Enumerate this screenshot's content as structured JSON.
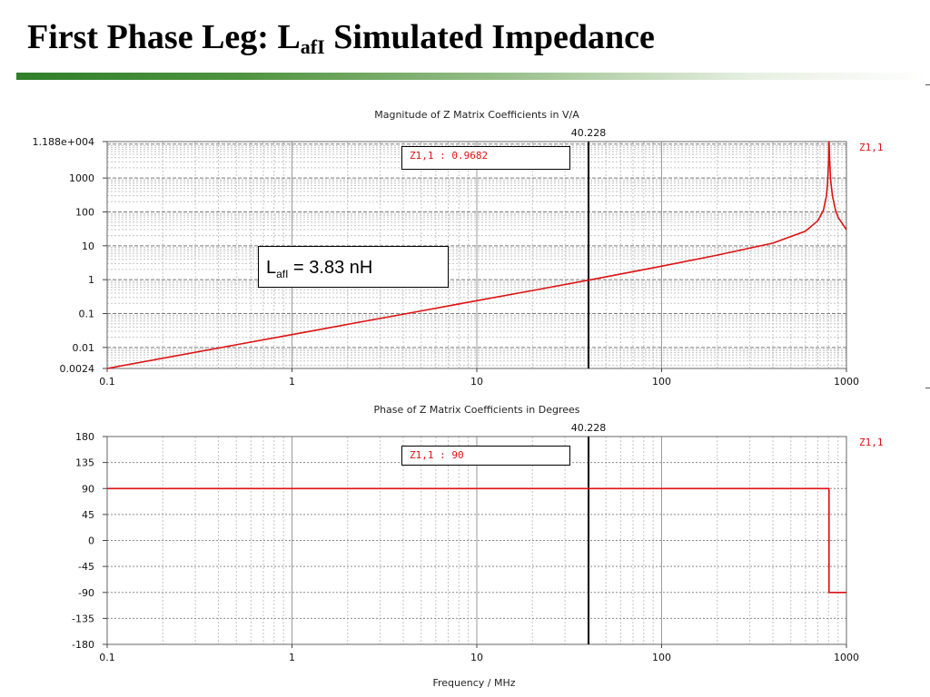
{
  "slide": {
    "title_before": "First Phase Leg: L",
    "title_subscript": "afI",
    "title_after": " Simulated Impedance"
  },
  "annotation": {
    "prefix": "L",
    "subscript": "afI",
    "suffix": " = 3.83 nH"
  },
  "colors": {
    "trace": "#dd1111",
    "rule_green": "#2f7f2a",
    "marker": "#000000"
  },
  "chart_data": [
    {
      "type": "line",
      "title": "Magnitude of Z Matrix Coefficients in V/A",
      "xscale": "log",
      "yscale": "log",
      "xlim": [
        0.1,
        1000
      ],
      "ylim": [
        0.0024,
        11880
      ],
      "x_ticks": [
        0.1,
        1,
        10,
        100,
        1000
      ],
      "x_tick_labels": [
        "0.1",
        "1",
        "10",
        "100",
        "1000"
      ],
      "y_ticks": [
        0.0024,
        0.01,
        0.1,
        1,
        10,
        100,
        1000,
        11880
      ],
      "y_tick_labels": [
        "0.0024",
        "0.01",
        "0.1",
        "1",
        "10",
        "100",
        "1000",
        "1.188e+004"
      ],
      "grid": true,
      "marker": {
        "x": 40.228,
        "label": "40.228",
        "readout": "Z1,1 : 0.9682"
      },
      "series": [
        {
          "name": "Z1,1",
          "color": "#dd1111",
          "x": [
            0.1,
            0.5,
            1,
            2,
            5,
            10,
            20,
            40.228,
            100,
            200,
            400,
            600,
            700,
            750,
            780,
            790,
            800,
            805,
            810,
            820,
            840,
            870,
            900,
            950,
            1000
          ],
          "y": [
            0.0024,
            0.012,
            0.024,
            0.048,
            0.12,
            0.24,
            0.48,
            0.9682,
            2.5,
            5.3,
            12,
            27,
            55,
            110,
            300,
            700,
            3000,
            11880,
            4000,
            900,
            300,
            120,
            70,
            45,
            30
          ]
        }
      ]
    },
    {
      "type": "line",
      "title": "Phase of Z Matrix Coefficients in Degrees",
      "xlabel": "Frequency / MHz",
      "xscale": "log",
      "xlim": [
        0.1,
        1000
      ],
      "ylim": [
        -180,
        180
      ],
      "x_ticks": [
        0.1,
        1,
        10,
        100,
        1000
      ],
      "x_tick_labels": [
        "0.1",
        "1",
        "10",
        "100",
        "1000"
      ],
      "y_ticks": [
        180,
        135,
        90,
        45,
        0,
        -45,
        -90,
        -135,
        -180
      ],
      "y_tick_labels": [
        "180",
        "135",
        "90",
        "45",
        "0",
        "-45",
        "-90",
        "-135",
        "-180"
      ],
      "grid": true,
      "marker": {
        "x": 40.228,
        "label": "40.228",
        "readout": "Z1,1 : 90"
      },
      "series": [
        {
          "name": "Z1,1",
          "color": "#dd1111",
          "x": [
            0.1,
            10,
            100,
            805,
            805,
            1000
          ],
          "y": [
            90,
            90,
            90,
            90,
            -90,
            -90
          ]
        }
      ]
    }
  ]
}
